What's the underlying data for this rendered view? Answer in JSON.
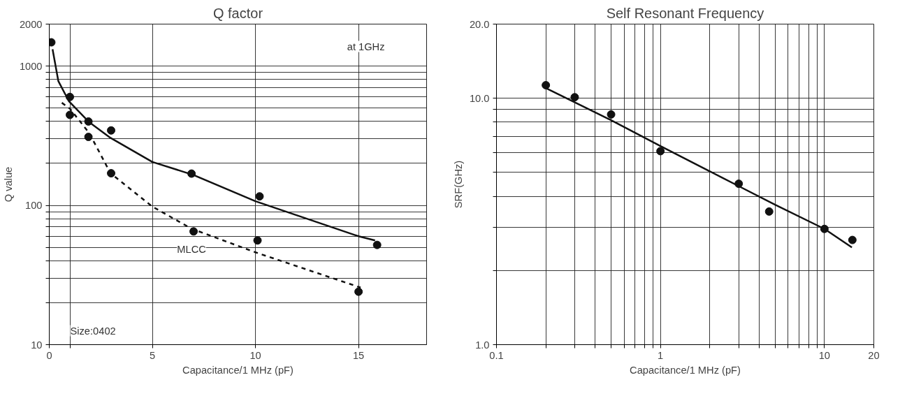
{
  "chart_data": [
    {
      "type": "scatter",
      "title": "Q factor",
      "xlabel": "Capacitance/1 MHz (pF)",
      "ylabel": "Q value",
      "log": "y",
      "grid": true,
      "marker": "circle",
      "xlim": [
        0,
        18.3
      ],
      "xticks": [
        0,
        {
          "value": 1,
          "label": null
        },
        5,
        10,
        15
      ],
      "ylim": [
        10,
        2000
      ],
      "yticks": [
        10,
        {
          "value": 20,
          "label": null
        },
        {
          "value": 30,
          "label": null
        },
        {
          "value": 40,
          "label": null
        },
        {
          "value": 50,
          "label": null
        },
        {
          "value": 60,
          "label": null
        },
        {
          "value": 70,
          "label": null
        },
        {
          "value": 80,
          "label": null
        },
        {
          "value": 90,
          "label": null
        },
        100,
        {
          "value": 200,
          "label": null
        },
        {
          "value": 300,
          "label": null
        },
        {
          "value": 400,
          "label": null
        },
        {
          "value": 500,
          "label": null
        },
        {
          "value": 600,
          "label": null
        },
        {
          "value": 700,
          "label": null
        },
        {
          "value": 800,
          "label": null
        },
        {
          "value": 900,
          "label": null
        },
        1000,
        2000
      ],
      "annotations": [
        "at 1GHz",
        "Size:0402"
      ],
      "series": [
        {
          "color": "#111111",
          "x": [
            0.1,
            1.0,
            1.9,
            3.0,
            6.9,
            10.2,
            15.9
          ],
          "values": [
            1480,
            600,
            400,
            345,
            169,
            116,
            52
          ]
        },
        {
          "color": "#111111",
          "x": [
            1.0,
            1.9,
            3.0,
            7.0,
            10.1,
            15.0
          ],
          "values": [
            446,
            310,
            170,
            65,
            56,
            24
          ]
        },
        {
          "type": "line",
          "color": "#111111",
          "line_style": "solid",
          "marker": "none",
          "x": [
            0.16,
            0.44,
            0.95,
            1.94,
            2.97,
            5,
            7,
            10,
            15,
            15.8
          ],
          "values": [
            1320,
            780,
            560,
            395,
            305,
            205,
            165,
            107,
            60,
            56
          ]
        },
        {
          "type": "line",
          "name": "MLCC",
          "color": "#111111",
          "line_style": "dashed",
          "marker": "none",
          "x": [
            0.61,
            1.0,
            1.94,
            2.97,
            5,
            6.9,
            10,
            15.1
          ],
          "values": [
            545,
            495,
            330,
            170,
            98,
            68,
            46,
            25.7
          ]
        }
      ]
    },
    {
      "type": "scatter",
      "title": "Self Resonant Frequency",
      "xlabel": "Capacitance/1 MHz (pF)",
      "ylabel": "SRF(GHz)",
      "log": "xy",
      "grid": true,
      "marker": "circle",
      "xlim": [
        0.1,
        20
      ],
      "xticks": [
        {
          "value": 0.1,
          "label": "0.1"
        },
        {
          "value": 0.2,
          "label": null
        },
        {
          "value": 0.3,
          "label": null
        },
        {
          "value": 0.4,
          "label": null
        },
        {
          "value": 0.5,
          "label": null
        },
        {
          "value": 0.6,
          "label": null
        },
        {
          "value": 0.7,
          "label": null
        },
        {
          "value": 0.8,
          "label": null
        },
        {
          "value": 0.9,
          "label": null
        },
        1,
        {
          "value": 2,
          "label": null
        },
        {
          "value": 3,
          "label": null
        },
        {
          "value": 4,
          "label": null
        },
        {
          "value": 5,
          "label": null
        },
        {
          "value": 6,
          "label": null
        },
        {
          "value": 7,
          "label": null
        },
        {
          "value": 8,
          "label": null
        },
        {
          "value": 9,
          "label": null
        },
        10,
        20
      ],
      "ylim": [
        1,
        20
      ],
      "yticks": [
        {
          "value": 1,
          "label": "1.0"
        },
        {
          "value": 2,
          "label": null
        },
        {
          "value": 3,
          "label": null
        },
        {
          "value": 4,
          "label": null
        },
        {
          "value": 5,
          "label": null
        },
        {
          "value": 6,
          "label": null
        },
        {
          "value": 7,
          "label": null
        },
        {
          "value": 8,
          "label": null
        },
        {
          "value": 9,
          "label": null
        },
        {
          "value": 10,
          "label": "10.0"
        },
        {
          "value": 20,
          "label": "20.0"
        }
      ],
      "series": [
        {
          "color": "#111111",
          "x": [
            0.2,
            0.3,
            0.5,
            1.0,
            3.0,
            4.6,
            10,
            14.8
          ],
          "values": [
            11.3,
            10.1,
            8.6,
            6.1,
            4.5,
            3.47,
            2.95,
            2.66
          ]
        },
        {
          "type": "line",
          "color": "#111111",
          "line_style": "solid",
          "marker": "none",
          "x": [
            0.2,
            0.5,
            1,
            2,
            3,
            5,
            10,
            14.7
          ],
          "values": [
            11.0,
            8.15,
            6.4,
            5.05,
            4.4,
            3.7,
            2.95,
            2.48
          ]
        }
      ]
    }
  ]
}
